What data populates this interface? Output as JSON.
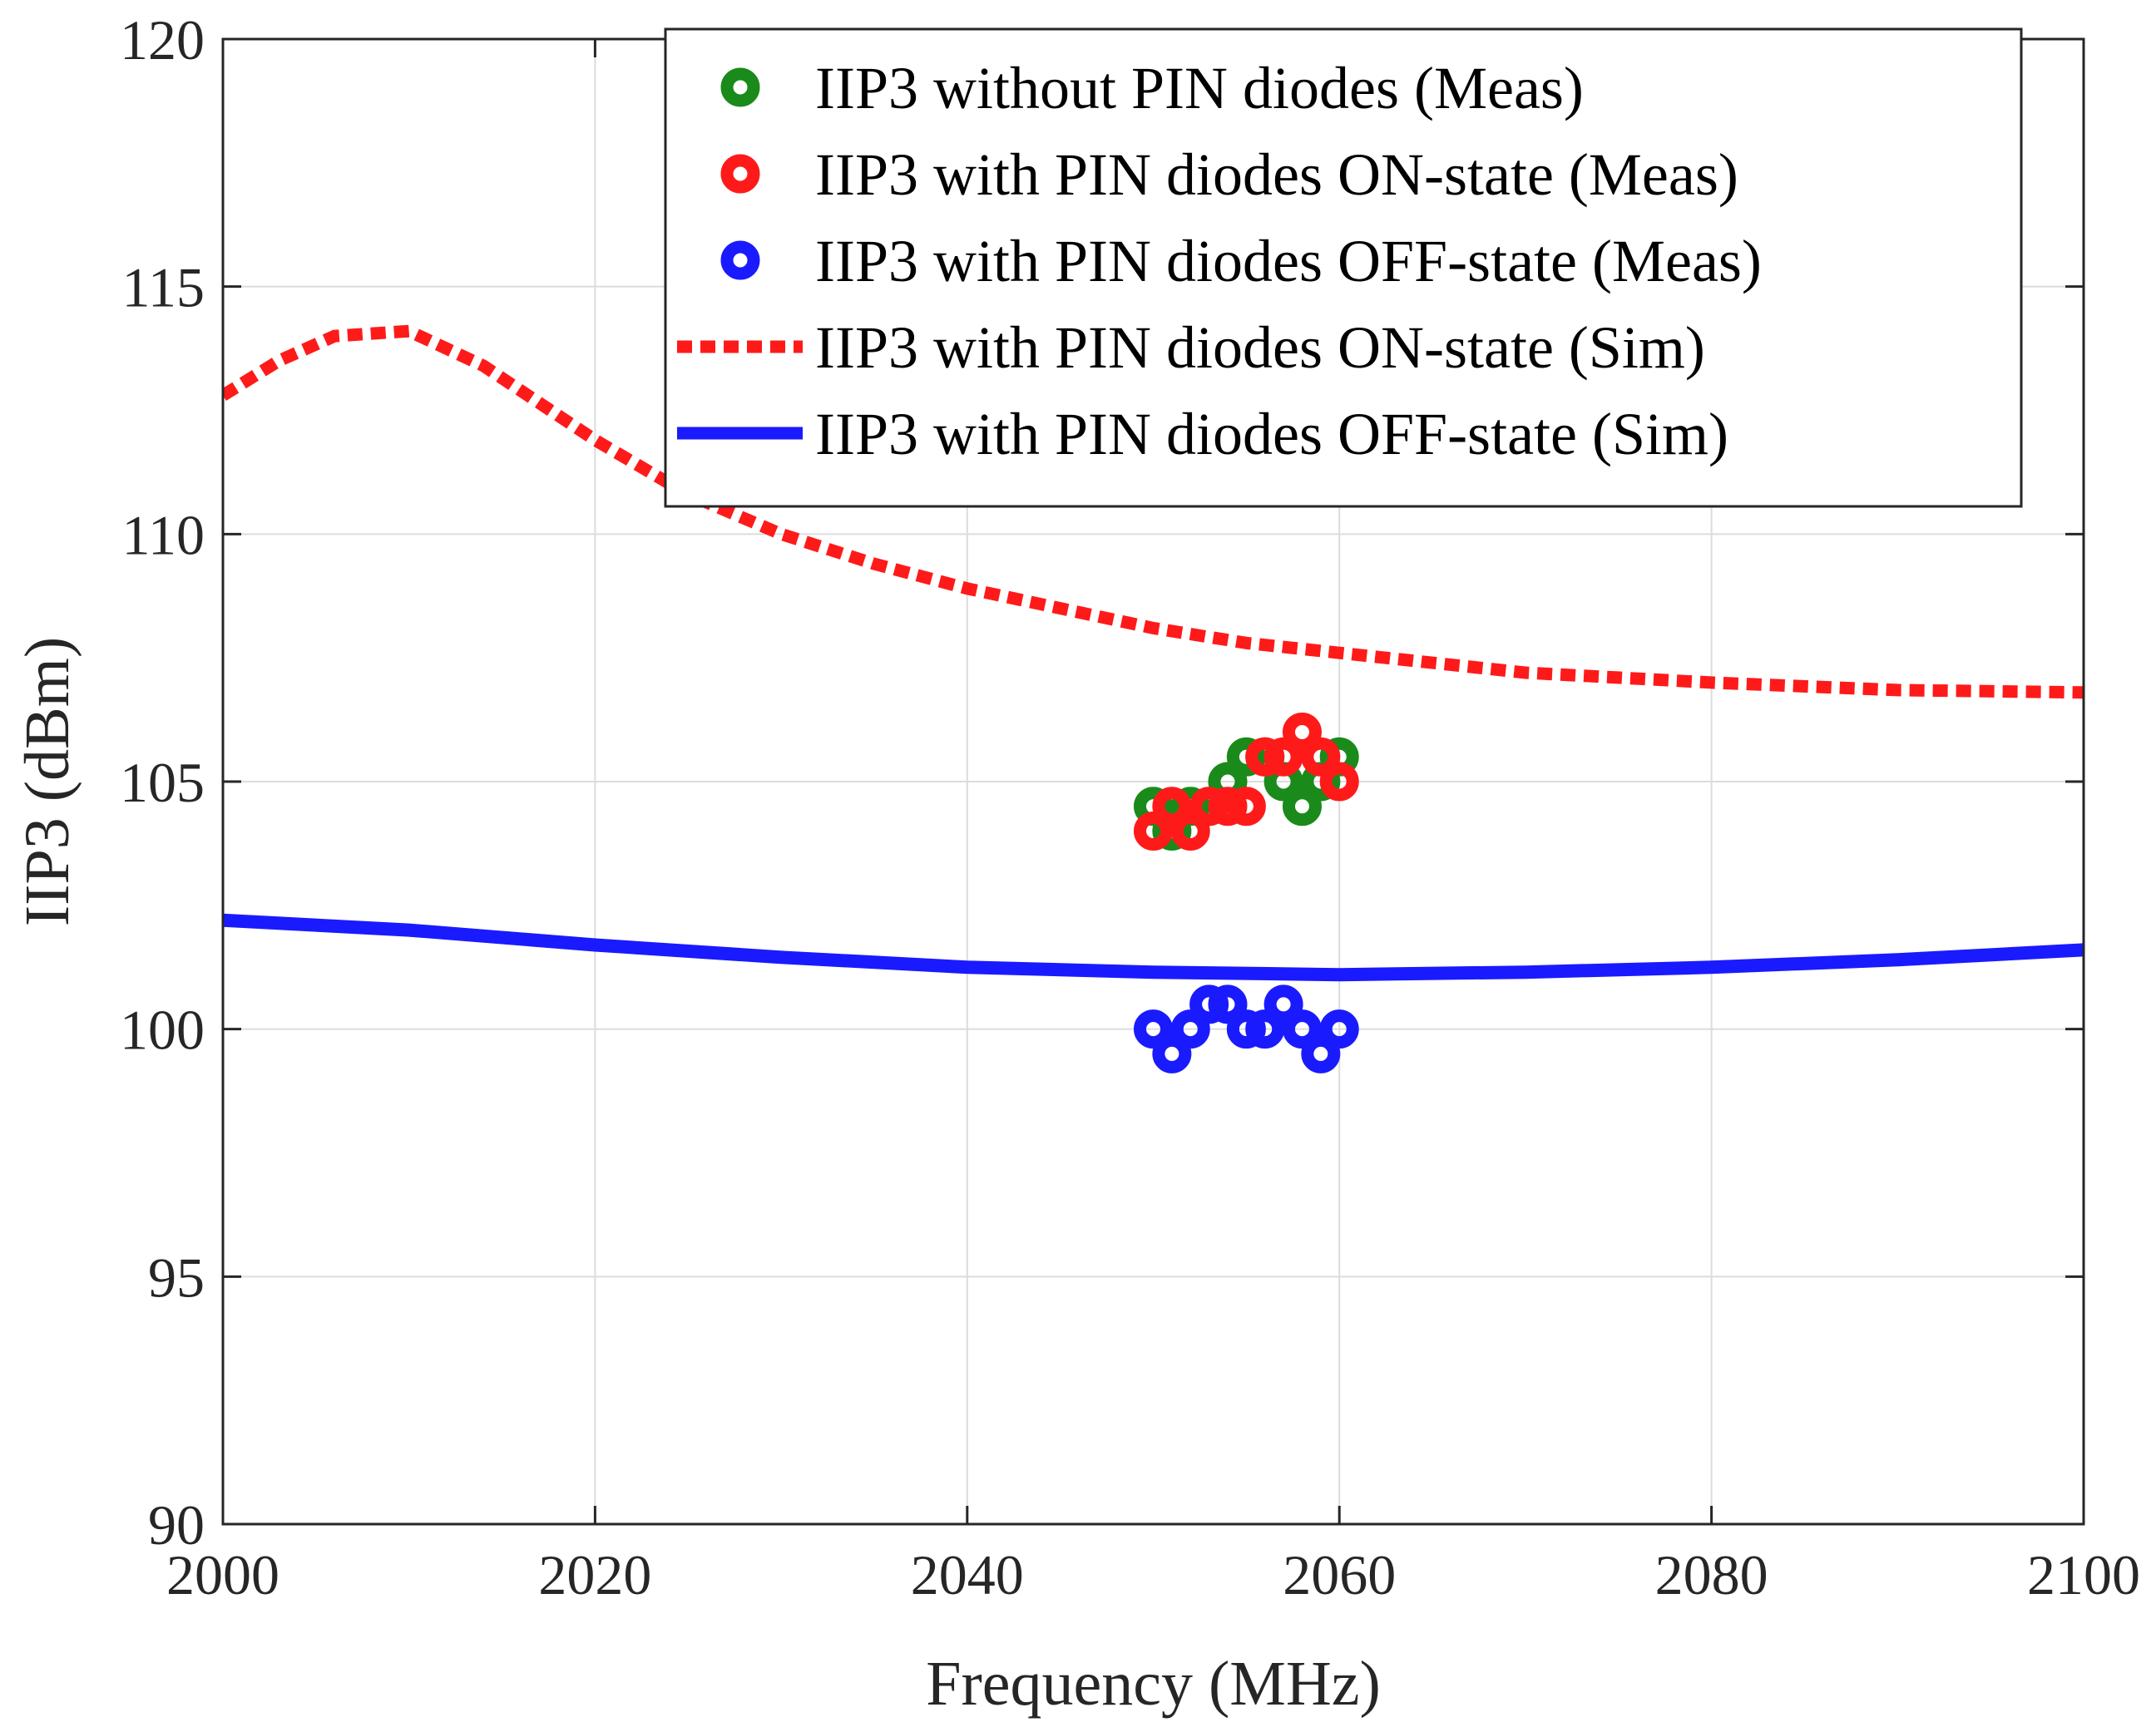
{
  "chart_data": {
    "type": "line",
    "title": "",
    "xlabel": "Frequency (MHz)",
    "ylabel": "IIP3 (dBm)",
    "xlim": [
      2000,
      2100
    ],
    "ylim": [
      90,
      120
    ],
    "xticks": [
      2000,
      2020,
      2040,
      2060,
      2080,
      2100
    ],
    "yticks": [
      90,
      95,
      100,
      105,
      110,
      115,
      120
    ],
    "grid": true,
    "legend_position": "top-right",
    "series": [
      {
        "name": "IIP3 without PIN diodes (Meas)",
        "kind": "scatter",
        "color": "#1a8a1a",
        "x": [
          2050,
          2051,
          2052,
          2053,
          2054,
          2055,
          2056,
          2057,
          2058,
          2059,
          2060
        ],
        "y": [
          104.5,
          104.0,
          104.5,
          104.5,
          105.0,
          105.5,
          105.5,
          105.0,
          104.5,
          105.0,
          105.5
        ]
      },
      {
        "name": "IIP3 with PIN diodes ON-state (Meas)",
        "kind": "scatter",
        "color": "#ff1a1a",
        "x": [
          2050,
          2051,
          2052,
          2053,
          2054,
          2055,
          2056,
          2057,
          2058,
          2059,
          2060
        ],
        "y": [
          104.0,
          104.5,
          104.0,
          104.5,
          104.5,
          104.5,
          105.5,
          105.5,
          106.0,
          105.5,
          105.0
        ]
      },
      {
        "name": "IIP3 with PIN diodes OFF-state (Meas)",
        "kind": "scatter",
        "color": "#1a1aff",
        "x": [
          2050,
          2051,
          2052,
          2053,
          2054,
          2055,
          2056,
          2057,
          2058,
          2059,
          2060
        ],
        "y": [
          100.0,
          99.5,
          100.0,
          100.5,
          100.5,
          100.0,
          100.0,
          100.5,
          100.0,
          99.5,
          100.0
        ]
      },
      {
        "name": "IIP3 with PIN diodes ON-state (Sim)",
        "kind": "line",
        "style": "dotted",
        "color": "#ff1a1a",
        "x": [
          2000,
          2003,
          2006,
          2010,
          2014,
          2020,
          2025,
          2030,
          2035,
          2040,
          2045,
          2050,
          2055,
          2060,
          2065,
          2070,
          2080,
          2090,
          2100
        ],
        "y": [
          112.8,
          113.5,
          114.0,
          114.1,
          113.4,
          111.9,
          110.8,
          110.0,
          109.4,
          108.9,
          108.5,
          108.1,
          107.8,
          107.6,
          107.4,
          107.2,
          107.0,
          106.85,
          106.8
        ]
      },
      {
        "name": "IIP3 with PIN diodes OFF-state (Sim)",
        "kind": "line",
        "style": "solid",
        "color": "#1a1aff",
        "x": [
          2000,
          2010,
          2020,
          2030,
          2040,
          2050,
          2060,
          2070,
          2080,
          2090,
          2100
        ],
        "y": [
          102.2,
          102.0,
          101.7,
          101.45,
          101.25,
          101.15,
          101.1,
          101.15,
          101.25,
          101.4,
          101.6
        ]
      }
    ]
  }
}
